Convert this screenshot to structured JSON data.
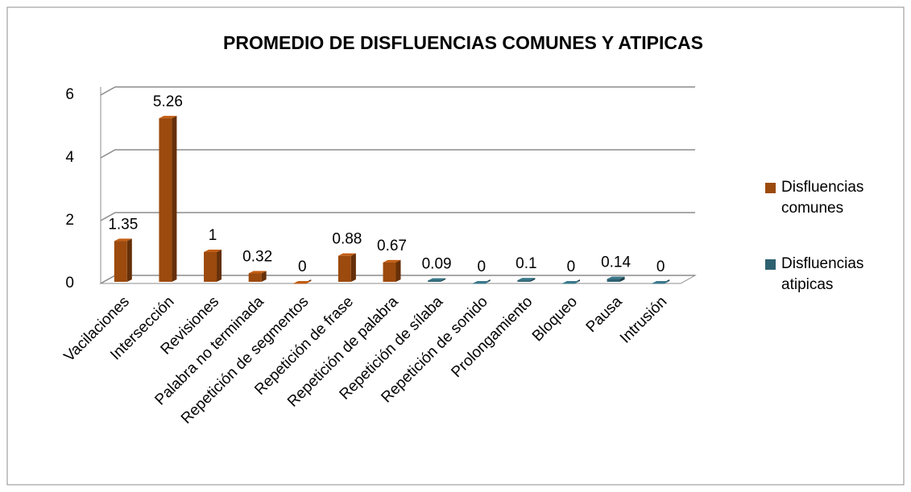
{
  "chart_data": {
    "type": "bar3d",
    "title": "PROMEDIO DE DISFLUENCIAS COMUNES Y ATIPICAS",
    "categories": [
      "Vacilaciones",
      "Intersección",
      "Revisiones",
      "Palabra no terminada",
      "Repetición de segmentos",
      "Repetición de frase",
      "Repetición de palabra",
      "Repetición de sílaba",
      "Repetición de sonido",
      "Prolongamiento",
      "Bloqueo",
      "Pausa",
      "Intrusión"
    ],
    "series": [
      {
        "name": "Disfluencias comunes",
        "color": "#9c4a0e",
        "values": [
          1.35,
          5.26,
          1,
          0.32,
          0,
          0.88,
          0.67,
          null,
          null,
          null,
          null,
          null,
          null
        ]
      },
      {
        "name": "Disfluencias atipicas",
        "color": "#2e6170",
        "values": [
          null,
          null,
          null,
          null,
          null,
          null,
          null,
          0.09,
          0,
          0.1,
          0,
          0.14,
          0
        ]
      }
    ],
    "ylim": [
      0,
      6
    ],
    "yticks": [
      0,
      2,
      4,
      6
    ],
    "grid": true,
    "legend": "right"
  }
}
